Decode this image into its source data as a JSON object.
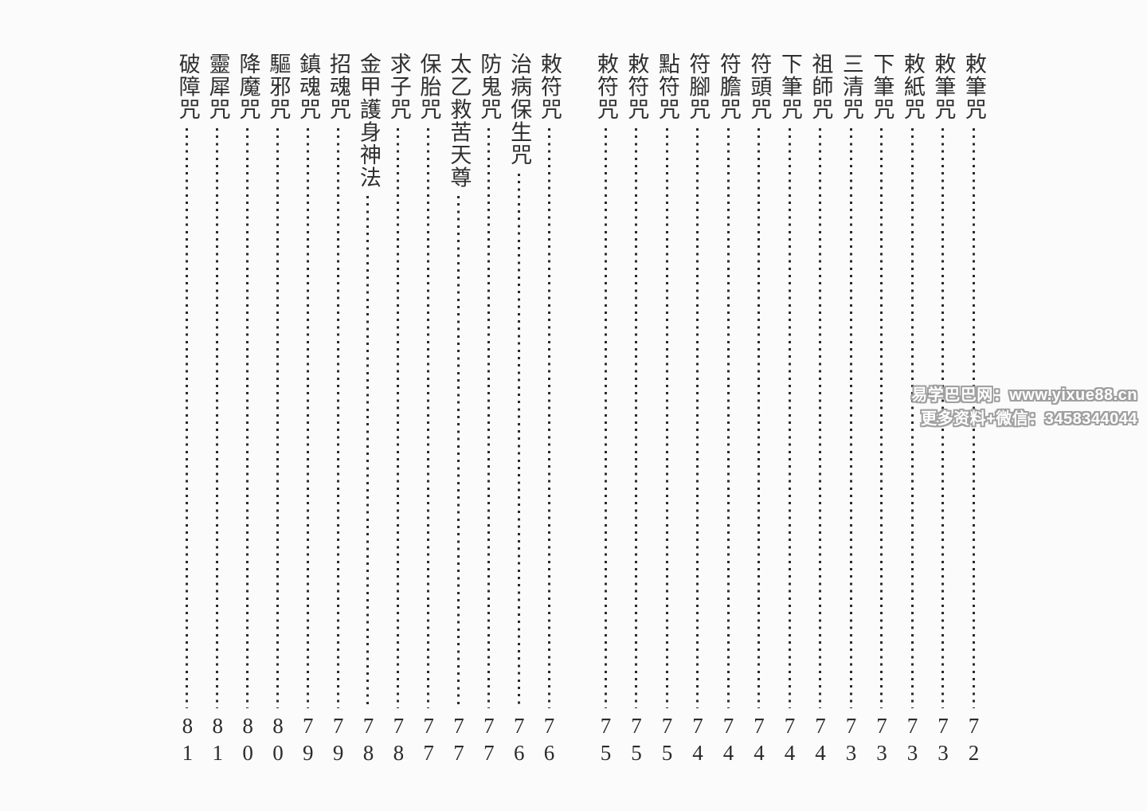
{
  "page": {
    "background": "#fbfbfb",
    "ink": "#2f2f2f"
  },
  "toc": {
    "right_page_entries": [
      {
        "title": "敕筆咒",
        "page": "72"
      },
      {
        "title": "敕筆咒",
        "page": "73"
      },
      {
        "title": "敕紙咒",
        "page": "73"
      },
      {
        "title": "下筆咒",
        "page": "73"
      },
      {
        "title": "三清咒",
        "page": "73"
      },
      {
        "title": "祖師咒",
        "page": "74"
      },
      {
        "title": "下筆咒",
        "page": "74"
      },
      {
        "title": "符頭咒",
        "page": "74"
      },
      {
        "title": "符膽咒",
        "page": "74"
      },
      {
        "title": "符腳咒",
        "page": "74"
      },
      {
        "title": "點符咒",
        "page": "75"
      },
      {
        "title": "敕符咒",
        "page": "75"
      },
      {
        "title": "敕符咒",
        "page": "75"
      }
    ],
    "left_page_entries": [
      {
        "title": "敕符咒",
        "page": "76"
      },
      {
        "title": "治病保生咒",
        "page": "76"
      },
      {
        "title": "防鬼咒",
        "page": "77"
      },
      {
        "title": "太乙救苦天尊",
        "page": "77"
      },
      {
        "title": "保胎咒",
        "page": "77"
      },
      {
        "title": "求子咒",
        "page": "78"
      },
      {
        "title": "金甲護身神法",
        "page": "78"
      },
      {
        "title": "招魂咒",
        "page": "79"
      },
      {
        "title": "鎮魂咒",
        "page": "79"
      },
      {
        "title": "驅邪咒",
        "page": "80"
      },
      {
        "title": "降魔咒",
        "page": "80"
      },
      {
        "title": "靈犀咒",
        "page": "81"
      },
      {
        "title": "破障咒",
        "page": "81"
      }
    ]
  },
  "watermark": {
    "line1": "易学巴巴网：www.yixue88.cn",
    "line2": "更多资料+微信：3458344044",
    "fill": "#ffffff",
    "outline": "#a0a0a0"
  }
}
